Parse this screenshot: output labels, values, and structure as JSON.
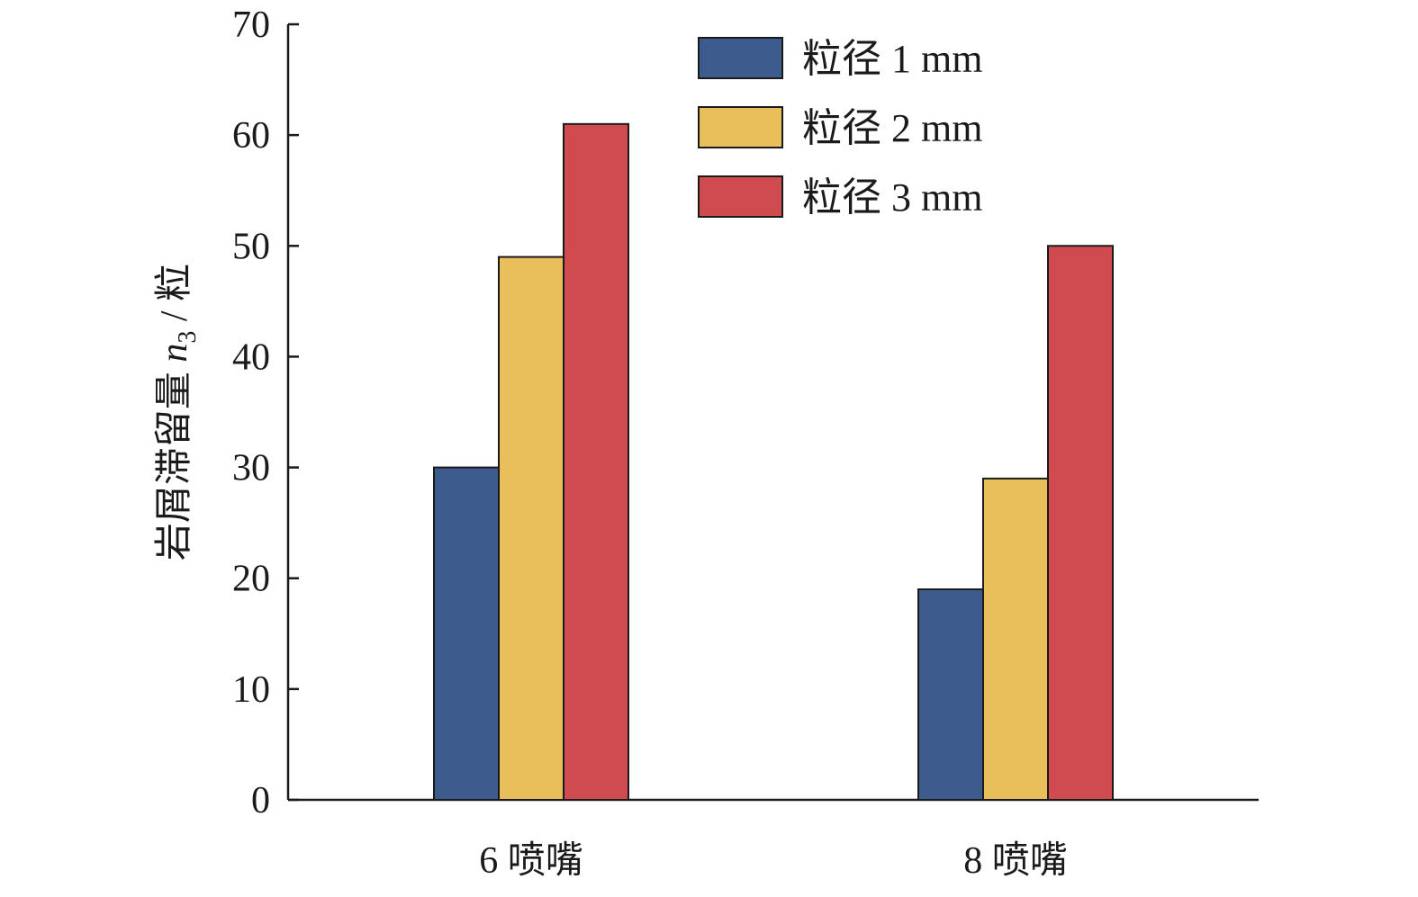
{
  "chart_data": {
    "type": "bar",
    "categories": [
      "6 喷嘴",
      "8 喷嘴"
    ],
    "series": [
      {
        "name": "粒径 1 mm",
        "values": [
          30,
          19
        ],
        "color": "#3d5b8c"
      },
      {
        "name": "粒径 2 mm",
        "values": [
          49,
          29
        ],
        "color": "#e9bf5c"
      },
      {
        "name": "粒径 3 mm",
        "values": [
          61,
          50
        ],
        "color": "#cf4b50"
      }
    ],
    "ylabel": {
      "prefix": "岩屑滞留量 ",
      "var": "n",
      "sub": "3",
      "suffix": " / 粒"
    },
    "xlabel": "",
    "ylim": [
      0,
      70
    ],
    "yticks": [
      0,
      10,
      20,
      30,
      40,
      50,
      60,
      70
    ],
    "grid": false,
    "legend_position": "top-right"
  }
}
